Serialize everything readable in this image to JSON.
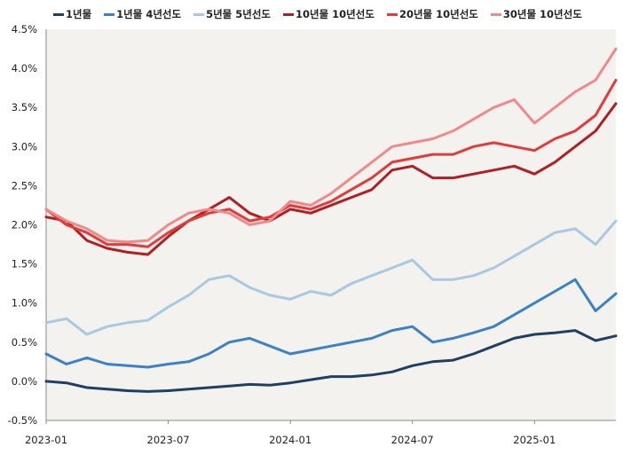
{
  "chart_data": {
    "type": "line",
    "title": "",
    "xlabel": "",
    "ylabel": "",
    "x_range": [
      "2023-01",
      "2025-05"
    ],
    "ylim": [
      -0.5,
      4.5
    ],
    "y_ticks": [
      -0.5,
      0.0,
      0.5,
      1.0,
      1.5,
      2.0,
      2.5,
      3.0,
      3.5,
      4.0,
      4.5
    ],
    "y_tick_labels": [
      "-0.5%",
      "0.0%",
      "0.5%",
      "1.0%",
      "1.5%",
      "2.0%",
      "2.5%",
      "3.0%",
      "3.5%",
      "4.0%",
      "4.5%"
    ],
    "x_ticks": [
      "2023-01",
      "2023-07",
      "2024-01",
      "2024-07",
      "2025-01"
    ],
    "grid": false,
    "legend_position": "top",
    "plot_background": "#f4f2ef",
    "series": [
      {
        "name": "1년물",
        "color": "#1f3f63",
        "points": [
          [
            "2023-01",
            0.0
          ],
          [
            "2023-02",
            -0.02
          ],
          [
            "2023-03",
            -0.08
          ],
          [
            "2023-04",
            -0.1
          ],
          [
            "2023-05",
            -0.12
          ],
          [
            "2023-06",
            -0.13
          ],
          [
            "2023-07",
            -0.12
          ],
          [
            "2023-08",
            -0.1
          ],
          [
            "2023-09",
            -0.08
          ],
          [
            "2023-10",
            -0.06
          ],
          [
            "2023-11",
            -0.04
          ],
          [
            "2023-12",
            -0.05
          ],
          [
            "2024-01",
            -0.02
          ],
          [
            "2024-02",
            0.02
          ],
          [
            "2024-03",
            0.06
          ],
          [
            "2024-04",
            0.06
          ],
          [
            "2024-05",
            0.08
          ],
          [
            "2024-06",
            0.12
          ],
          [
            "2024-07",
            0.2
          ],
          [
            "2024-08",
            0.25
          ],
          [
            "2024-09",
            0.27
          ],
          [
            "2024-10",
            0.35
          ],
          [
            "2024-11",
            0.45
          ],
          [
            "2024-12",
            0.55
          ],
          [
            "2025-01",
            0.6
          ],
          [
            "2025-02",
            0.62
          ],
          [
            "2025-03",
            0.65
          ],
          [
            "2025-04",
            0.52
          ],
          [
            "2025-05",
            0.58
          ]
        ]
      },
      {
        "name": "1년물 4년선도",
        "color": "#3b82c4",
        "points": [
          [
            "2023-01",
            0.35
          ],
          [
            "2023-02",
            0.22
          ],
          [
            "2023-03",
            0.3
          ],
          [
            "2023-04",
            0.22
          ],
          [
            "2023-05",
            0.2
          ],
          [
            "2023-06",
            0.18
          ],
          [
            "2023-07",
            0.22
          ],
          [
            "2023-08",
            0.25
          ],
          [
            "2023-09",
            0.35
          ],
          [
            "2023-10",
            0.5
          ],
          [
            "2023-11",
            0.55
          ],
          [
            "2023-12",
            0.45
          ],
          [
            "2024-01",
            0.35
          ],
          [
            "2024-02",
            0.4
          ],
          [
            "2024-03",
            0.45
          ],
          [
            "2024-04",
            0.5
          ],
          [
            "2024-05",
            0.55
          ],
          [
            "2024-06",
            0.65
          ],
          [
            "2024-07",
            0.7
          ],
          [
            "2024-08",
            0.5
          ],
          [
            "2024-09",
            0.55
          ],
          [
            "2024-10",
            0.62
          ],
          [
            "2024-11",
            0.7
          ],
          [
            "2024-12",
            0.85
          ],
          [
            "2025-01",
            1.0
          ],
          [
            "2025-02",
            1.15
          ],
          [
            "2025-03",
            1.3
          ],
          [
            "2025-04",
            0.9
          ],
          [
            "2025-05",
            1.12
          ]
        ]
      },
      {
        "name": "5년물 5년선도",
        "color": "#a9c9e0",
        "points": [
          [
            "2023-01",
            0.75
          ],
          [
            "2023-02",
            0.8
          ],
          [
            "2023-03",
            0.6
          ],
          [
            "2023-04",
            0.7
          ],
          [
            "2023-05",
            0.75
          ],
          [
            "2023-06",
            0.78
          ],
          [
            "2023-07",
            0.95
          ],
          [
            "2023-08",
            1.1
          ],
          [
            "2023-09",
            1.3
          ],
          [
            "2023-10",
            1.35
          ],
          [
            "2023-11",
            1.2
          ],
          [
            "2023-12",
            1.1
          ],
          [
            "2024-01",
            1.05
          ],
          [
            "2024-02",
            1.15
          ],
          [
            "2024-03",
            1.1
          ],
          [
            "2024-04",
            1.25
          ],
          [
            "2024-05",
            1.35
          ],
          [
            "2024-06",
            1.45
          ],
          [
            "2024-07",
            1.55
          ],
          [
            "2024-08",
            1.3
          ],
          [
            "2024-09",
            1.3
          ],
          [
            "2024-10",
            1.35
          ],
          [
            "2024-11",
            1.45
          ],
          [
            "2024-12",
            1.6
          ],
          [
            "2025-01",
            1.75
          ],
          [
            "2025-02",
            1.9
          ],
          [
            "2025-03",
            1.95
          ],
          [
            "2025-04",
            1.75
          ],
          [
            "2025-05",
            2.05
          ]
        ]
      },
      {
        "name": "10년물 10년선도",
        "color": "#b01f24",
        "points": [
          [
            "2023-01",
            2.1
          ],
          [
            "2023-02",
            2.05
          ],
          [
            "2023-03",
            1.8
          ],
          [
            "2023-04",
            1.7
          ],
          [
            "2023-05",
            1.65
          ],
          [
            "2023-06",
            1.62
          ],
          [
            "2023-07",
            1.85
          ],
          [
            "2023-08",
            2.05
          ],
          [
            "2023-09",
            2.2
          ],
          [
            "2023-10",
            2.35
          ],
          [
            "2023-11",
            2.15
          ],
          [
            "2023-12",
            2.05
          ],
          [
            "2024-01",
            2.2
          ],
          [
            "2024-02",
            2.15
          ],
          [
            "2024-03",
            2.25
          ],
          [
            "2024-04",
            2.35
          ],
          [
            "2024-05",
            2.45
          ],
          [
            "2024-06",
            2.7
          ],
          [
            "2024-07",
            2.75
          ],
          [
            "2024-08",
            2.6
          ],
          [
            "2024-09",
            2.6
          ],
          [
            "2024-10",
            2.65
          ],
          [
            "2024-11",
            2.7
          ],
          [
            "2024-12",
            2.75
          ],
          [
            "2025-01",
            2.65
          ],
          [
            "2025-02",
            2.8
          ],
          [
            "2025-03",
            3.0
          ],
          [
            "2025-04",
            3.2
          ],
          [
            "2025-05",
            3.55
          ]
        ]
      },
      {
        "name": "20년물 10년선도",
        "color": "#e03c3c",
        "points": [
          [
            "2023-01",
            2.2
          ],
          [
            "2023-02",
            2.0
          ],
          [
            "2023-03",
            1.9
          ],
          [
            "2023-04",
            1.75
          ],
          [
            "2023-05",
            1.75
          ],
          [
            "2023-06",
            1.72
          ],
          [
            "2023-07",
            1.9
          ],
          [
            "2023-08",
            2.05
          ],
          [
            "2023-09",
            2.15
          ],
          [
            "2023-10",
            2.2
          ],
          [
            "2023-11",
            2.05
          ],
          [
            "2023-12",
            2.1
          ],
          [
            "2024-01",
            2.25
          ],
          [
            "2024-02",
            2.2
          ],
          [
            "2024-03",
            2.3
          ],
          [
            "2024-04",
            2.45
          ],
          [
            "2024-05",
            2.6
          ],
          [
            "2024-06",
            2.8
          ],
          [
            "2024-07",
            2.85
          ],
          [
            "2024-08",
            2.9
          ],
          [
            "2024-09",
            2.9
          ],
          [
            "2024-10",
            3.0
          ],
          [
            "2024-11",
            3.05
          ],
          [
            "2024-12",
            3.0
          ],
          [
            "2025-01",
            2.95
          ],
          [
            "2025-02",
            3.1
          ],
          [
            "2025-03",
            3.2
          ],
          [
            "2025-04",
            3.4
          ],
          [
            "2025-05",
            3.85
          ]
        ]
      },
      {
        "name": "30년물 10년선도",
        "color": "#f08a8a",
        "points": [
          [
            "2023-01",
            2.2
          ],
          [
            "2023-02",
            2.05
          ],
          [
            "2023-03",
            1.95
          ],
          [
            "2023-04",
            1.8
          ],
          [
            "2023-05",
            1.78
          ],
          [
            "2023-06",
            1.8
          ],
          [
            "2023-07",
            2.0
          ],
          [
            "2023-08",
            2.15
          ],
          [
            "2023-09",
            2.2
          ],
          [
            "2023-10",
            2.15
          ],
          [
            "2023-11",
            2.0
          ],
          [
            "2023-12",
            2.05
          ],
          [
            "2024-01",
            2.3
          ],
          [
            "2024-02",
            2.25
          ],
          [
            "2024-03",
            2.4
          ],
          [
            "2024-04",
            2.6
          ],
          [
            "2024-05",
            2.8
          ],
          [
            "2024-06",
            3.0
          ],
          [
            "2024-07",
            3.05
          ],
          [
            "2024-08",
            3.1
          ],
          [
            "2024-09",
            3.2
          ],
          [
            "2024-10",
            3.35
          ],
          [
            "2024-11",
            3.5
          ],
          [
            "2024-12",
            3.6
          ],
          [
            "2025-01",
            3.3
          ],
          [
            "2025-02",
            3.5
          ],
          [
            "2025-03",
            3.7
          ],
          [
            "2025-04",
            3.85
          ],
          [
            "2025-05",
            4.25
          ]
        ]
      }
    ]
  }
}
